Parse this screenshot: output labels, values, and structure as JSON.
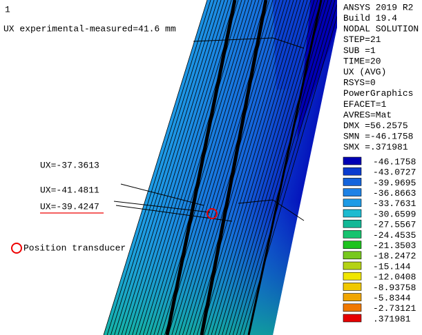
{
  "window_number": "1",
  "title": "UX experimental-measured=41.6 mm",
  "annotations": [
    "UX=-37.3613",
    "UX=-41.4811",
    "UX=-39.4247"
  ],
  "transducer_label": "Position transducer",
  "info": [
    "ANSYS 2019 R2",
    "Build 19.4",
    "NODAL SOLUTION",
    "STEP=21",
    "SUB =1",
    "TIME=20",
    "UX        (AVG)",
    "RSYS=0",
    "PowerGraphics",
    "EFACET=1",
    "AVRES=Mat",
    "DMX =56.2575",
    "SMN =-46.1758",
    "SMX =.371981"
  ],
  "legend": {
    "labels": [
      "-46.1758",
      "-43.0727",
      "-39.9695",
      "-36.8663",
      "-33.7631",
      "-30.6599",
      "-27.5567",
      "-24.4535",
      "-21.3503",
      "-18.2472",
      "-15.144",
      "-12.0408",
      "-8.93758",
      "-5.8344",
      "-2.73121",
      ".371981"
    ],
    "last_label": ".371981",
    "colors": [
      "#0000b4",
      "#0a3ccf",
      "#1464dc",
      "#1e82e6",
      "#1e9be6",
      "#1ebbd0",
      "#12b896",
      "#17c36e",
      "#1ec31e",
      "#78c81e",
      "#b4d214",
      "#f0e600",
      "#f0c800",
      "#f0a500",
      "#f07800",
      "#e60000"
    ]
  }
}
